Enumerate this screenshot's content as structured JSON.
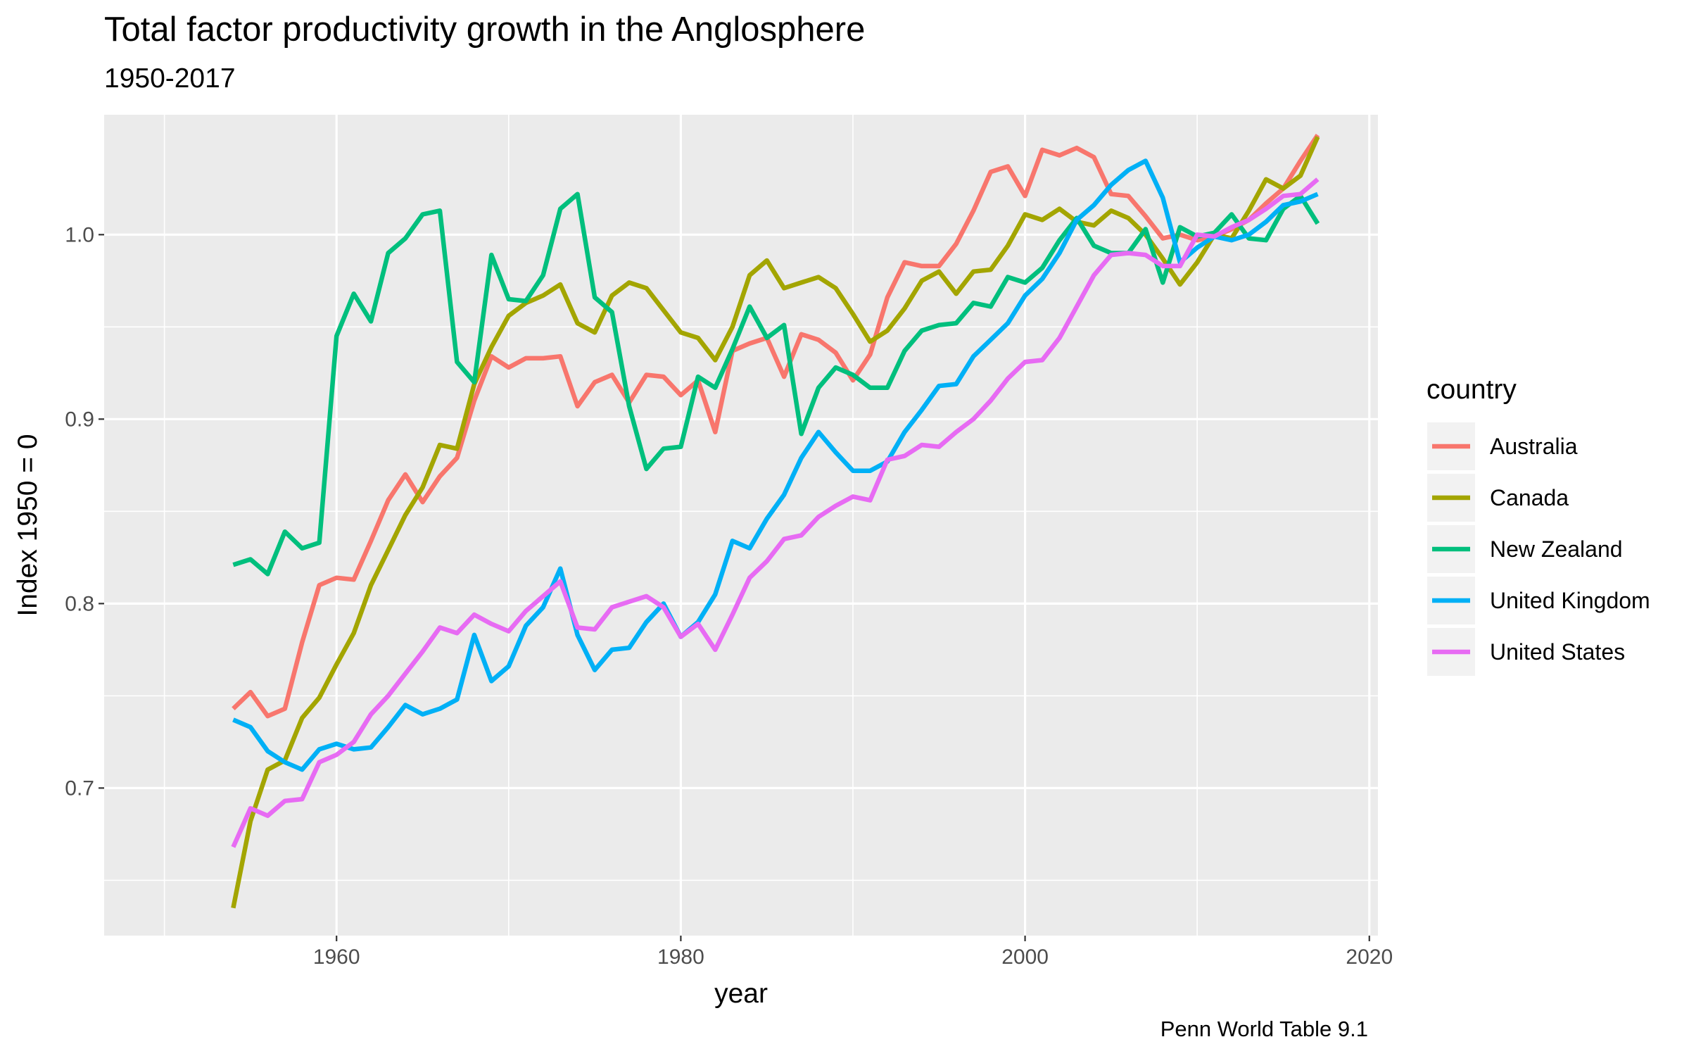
{
  "chart_data": {
    "type": "line",
    "title": "Total factor productivity growth in the Anglosphere",
    "subtitle": "1950-2017",
    "caption": "Penn World Table 9.1",
    "xlabel": "year",
    "ylabel": "Index 1950 = 0",
    "xlim": [
      1946.5,
      2020.5
    ],
    "ylim": [
      0.62,
      1.065
    ],
    "x_ticks": [
      1960,
      1980,
      2000,
      2020
    ],
    "y_ticks": [
      0.7,
      0.8,
      0.9,
      1.0
    ],
    "x_tick_labels": [
      "1960",
      "1980",
      "2000",
      "2020"
    ],
    "y_tick_labels": [
      "0.7",
      "0.8",
      "0.9",
      "1.0"
    ],
    "grid": true,
    "legend": {
      "title": "country",
      "position": "right"
    },
    "x": [
      1954,
      1955,
      1956,
      1957,
      1958,
      1959,
      1960,
      1961,
      1962,
      1963,
      1964,
      1965,
      1966,
      1967,
      1968,
      1969,
      1970,
      1971,
      1972,
      1973,
      1974,
      1975,
      1976,
      1977,
      1978,
      1979,
      1980,
      1981,
      1982,
      1983,
      1984,
      1985,
      1986,
      1987,
      1988,
      1989,
      1990,
      1991,
      1992,
      1993,
      1994,
      1995,
      1996,
      1997,
      1998,
      1999,
      2000,
      2001,
      2002,
      2003,
      2004,
      2005,
      2006,
      2007,
      2008,
      2009,
      2010,
      2011,
      2012,
      2013,
      2014,
      2015,
      2016,
      2017
    ],
    "series": [
      {
        "name": "Australia",
        "color": "#F8766D",
        "values": [
          0.743,
          0.752,
          0.739,
          0.743,
          0.779,
          0.81,
          0.814,
          0.813,
          0.834,
          0.856,
          0.87,
          0.855,
          0.869,
          0.879,
          0.91,
          0.934,
          0.928,
          0.933,
          0.933,
          0.934,
          0.907,
          0.92,
          0.924,
          0.909,
          0.924,
          0.923,
          0.913,
          0.921,
          0.893,
          0.937,
          0.941,
          0.944,
          0.923,
          0.946,
          0.943,
          0.936,
          0.921,
          0.935,
          0.966,
          0.985,
          0.983,
          0.983,
          0.995,
          1.013,
          1.034,
          1.037,
          1.021,
          1.046,
          1.043,
          1.047,
          1.042,
          1.022,
          1.021,
          1.01,
          0.998,
          1.0,
          0.997,
          0.999,
          1.003,
          1.008,
          1.017,
          1.025,
          1.04,
          1.054
        ]
      },
      {
        "name": "Canada",
        "color": "#A3A500",
        "values": [
          0.635,
          0.682,
          0.71,
          0.715,
          0.738,
          0.749,
          0.767,
          0.784,
          0.81,
          0.829,
          0.848,
          0.863,
          0.886,
          0.884,
          0.919,
          0.939,
          0.956,
          0.963,
          0.967,
          0.973,
          0.952,
          0.947,
          0.967,
          0.974,
          0.971,
          0.959,
          0.947,
          0.944,
          0.932,
          0.95,
          0.978,
          0.986,
          0.971,
          0.974,
          0.977,
          0.971,
          0.957,
          0.942,
          0.948,
          0.96,
          0.975,
          0.98,
          0.968,
          0.98,
          0.981,
          0.994,
          1.011,
          1.008,
          1.014,
          1.007,
          1.005,
          1.013,
          1.009,
          1.0,
          0.987,
          0.973,
          0.985,
          1.0,
          0.998,
          1.013,
          1.03,
          1.025,
          1.032,
          1.053
        ]
      },
      {
        "name": "New Zealand",
        "color": "#00BF7D",
        "values": [
          0.821,
          0.824,
          0.816,
          0.839,
          0.83,
          0.833,
          0.945,
          0.968,
          0.953,
          0.99,
          0.998,
          1.011,
          1.013,
          0.931,
          0.92,
          0.989,
          0.965,
          0.964,
          0.978,
          1.014,
          1.022,
          0.966,
          0.958,
          0.907,
          0.873,
          0.884,
          0.885,
          0.923,
          0.917,
          0.938,
          0.961,
          0.944,
          0.951,
          0.892,
          0.917,
          0.928,
          0.924,
          0.917,
          0.917,
          0.937,
          0.948,
          0.951,
          0.952,
          0.963,
          0.961,
          0.977,
          0.974,
          0.982,
          0.997,
          1.009,
          0.994,
          0.99,
          0.99,
          1.003,
          0.974,
          1.004,
          0.999,
          1.001,
          1.011,
          0.998,
          0.997,
          1.014,
          1.021,
          1.006
        ]
      },
      {
        "name": "United Kingdom",
        "color": "#00B0F6",
        "values": [
          0.737,
          0.733,
          0.72,
          0.714,
          0.71,
          0.721,
          0.724,
          0.721,
          0.722,
          0.733,
          0.745,
          0.74,
          0.743,
          0.748,
          0.783,
          0.758,
          0.766,
          0.788,
          0.798,
          0.819,
          0.783,
          0.764,
          0.775,
          0.776,
          0.79,
          0.8,
          0.782,
          0.79,
          0.805,
          0.834,
          0.83,
          0.846,
          0.859,
          0.879,
          0.893,
          0.882,
          0.872,
          0.872,
          0.877,
          0.893,
          0.905,
          0.918,
          0.919,
          0.934,
          0.943,
          0.952,
          0.967,
          0.976,
          0.99,
          1.008,
          1.016,
          1.027,
          1.035,
          1.04,
          1.02,
          0.985,
          0.993,
          0.999,
          0.997,
          1.0,
          1.007,
          1.016,
          1.018,
          1.022
        ]
      },
      {
        "name": "United States",
        "color": "#E76BF3",
        "values": [
          0.668,
          0.689,
          0.685,
          0.693,
          0.694,
          0.714,
          0.718,
          0.725,
          0.74,
          0.75,
          0.762,
          0.774,
          0.787,
          0.784,
          0.794,
          0.789,
          0.785,
          0.796,
          0.804,
          0.812,
          0.787,
          0.786,
          0.798,
          0.801,
          0.804,
          0.798,
          0.782,
          0.789,
          0.775,
          0.794,
          0.814,
          0.823,
          0.835,
          0.837,
          0.847,
          0.853,
          0.858,
          0.856,
          0.878,
          0.88,
          0.886,
          0.885,
          0.893,
          0.9,
          0.91,
          0.922,
          0.931,
          0.932,
          0.944,
          0.961,
          0.978,
          0.989,
          0.99,
          0.989,
          0.983,
          0.983,
          1.0,
          0.999,
          1.004,
          1.008,
          1.014,
          1.021,
          1.022,
          1.03
        ]
      }
    ]
  }
}
